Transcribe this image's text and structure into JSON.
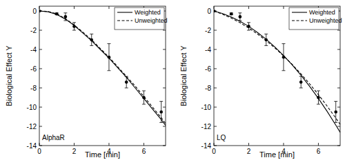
{
  "chart_data": [
    {
      "type": "line",
      "title": "AlphaR",
      "x_label": "Time [min]",
      "y_label": "Biological Effect Y",
      "xlim": [
        0,
        7.25
      ],
      "ylim": [
        -14,
        0.5
      ],
      "xticks": [
        0,
        2,
        4,
        6
      ],
      "yticks": [
        0,
        -2,
        -4,
        -6,
        -8,
        -10,
        -12,
        -14
      ],
      "legend": "upper right",
      "series": [
        {
          "name": "Weighted",
          "color": "#000000",
          "line_style": "solid",
          "x": [
            0,
            0.5,
            1,
            1.5,
            2,
            2.5,
            3,
            3.5,
            4,
            4.5,
            5,
            5.5,
            6,
            6.5,
            7,
            7.25
          ],
          "values": [
            0,
            -0.08,
            -0.35,
            -0.85,
            -1.5,
            -2.3,
            -3.1,
            -4.0,
            -4.9,
            -5.9,
            -6.9,
            -8.0,
            -9.1,
            -10.2,
            -11.3,
            -11.9
          ]
        },
        {
          "name": "Unweighted",
          "color": "#000000",
          "line_style": "dashed",
          "x": [
            0,
            0.5,
            1,
            1.5,
            2,
            2.5,
            3,
            3.5,
            4,
            4.5,
            5,
            5.5,
            6,
            6.5,
            7,
            7.25
          ],
          "values": [
            0,
            -0.05,
            -0.3,
            -0.8,
            -1.45,
            -2.2,
            -3.0,
            -3.9,
            -4.8,
            -5.8,
            -6.8,
            -7.8,
            -8.9,
            -10.0,
            -11.1,
            -11.7
          ]
        },
        {
          "type": "scatter",
          "color": "#000000",
          "marker": "circle",
          "x": [
            0,
            1,
            1.5,
            2,
            3,
            4,
            5,
            6,
            7
          ],
          "values": [
            0,
            -0.3,
            -0.6,
            -1.6,
            -3.0,
            -4.8,
            -7.4,
            -9.0,
            -10.5
          ],
          "error": [
            0,
            0.1,
            0.4,
            0.4,
            0.6,
            1.4,
            0.6,
            0.7,
            1.1
          ]
        }
      ]
    },
    {
      "type": "line",
      "title": "LQ",
      "x_label": "Time [min]",
      "y_label": "Biological Effect Y",
      "xlim": [
        0,
        7.25
      ],
      "ylim": [
        -14,
        0.5
      ],
      "xticks": [
        0,
        2,
        4,
        6
      ],
      "yticks": [
        0,
        -2,
        -4,
        -6,
        -8,
        -10,
        -12,
        -14
      ],
      "legend": "upper right",
      "series": [
        {
          "name": "Weighted",
          "color": "#000000",
          "line_style": "solid",
          "x": [
            0,
            0.5,
            1,
            1.5,
            2,
            2.5,
            3,
            3.5,
            4,
            4.5,
            5,
            5.5,
            6,
            6.5,
            7,
            7.25
          ],
          "values": [
            0,
            -0.27,
            -0.62,
            -1.07,
            -1.6,
            -2.23,
            -2.94,
            -3.74,
            -4.63,
            -5.62,
            -6.69,
            -7.85,
            -9.1,
            -10.44,
            -11.87,
            -12.62
          ]
        },
        {
          "name": "Unweighted",
          "color": "#000000",
          "line_style": "dashed",
          "x": [
            0,
            0.5,
            1,
            1.5,
            2,
            2.5,
            3,
            3.5,
            4,
            4.5,
            5,
            5.5,
            6,
            6.5,
            7,
            7.25
          ],
          "values": [
            0,
            -0.34,
            -0.74,
            -1.22,
            -1.77,
            -2.39,
            -3.08,
            -3.84,
            -4.67,
            -5.57,
            -6.54,
            -7.59,
            -8.7,
            -9.89,
            -11.14,
            -11.8
          ]
        },
        {
          "type": "scatter",
          "color": "#000000",
          "marker": "circle",
          "x": [
            0,
            1,
            1.5,
            2,
            3,
            4,
            5,
            6,
            7
          ],
          "values": [
            0,
            -0.3,
            -0.6,
            -1.6,
            -3.0,
            -4.8,
            -7.4,
            -9.0,
            -10.5
          ],
          "error": [
            0,
            0.1,
            0.4,
            0.4,
            0.6,
            1.4,
            0.6,
            0.7,
            1.1
          ]
        }
      ]
    }
  ]
}
